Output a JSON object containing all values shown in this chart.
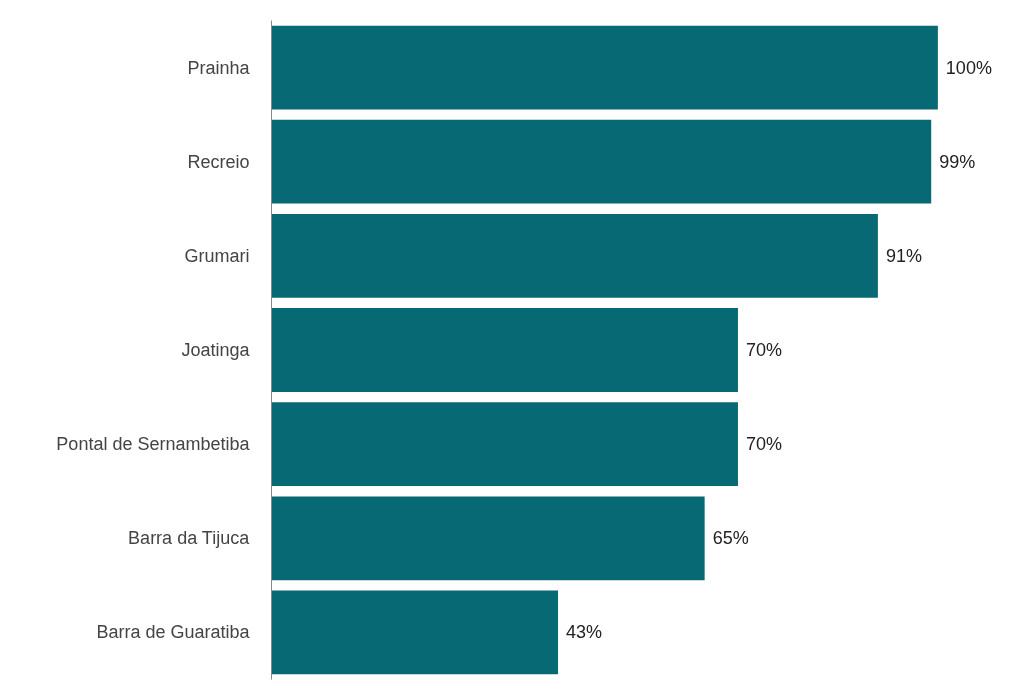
{
  "chart_data": {
    "type": "bar",
    "orientation": "horizontal",
    "categories": [
      "Prainha",
      "Recreio",
      "Grumari",
      "Joatinga",
      "Pontal de Sernambetiba",
      "Barra da Tijuca",
      "Barra de Guaratiba"
    ],
    "values": [
      100,
      99,
      91,
      70,
      70,
      65,
      43
    ],
    "value_labels": [
      "100%",
      "99%",
      "91%",
      "70%",
      "70%",
      "65%",
      "43%"
    ],
    "color": "#066973",
    "tick_labels": "y"
  }
}
